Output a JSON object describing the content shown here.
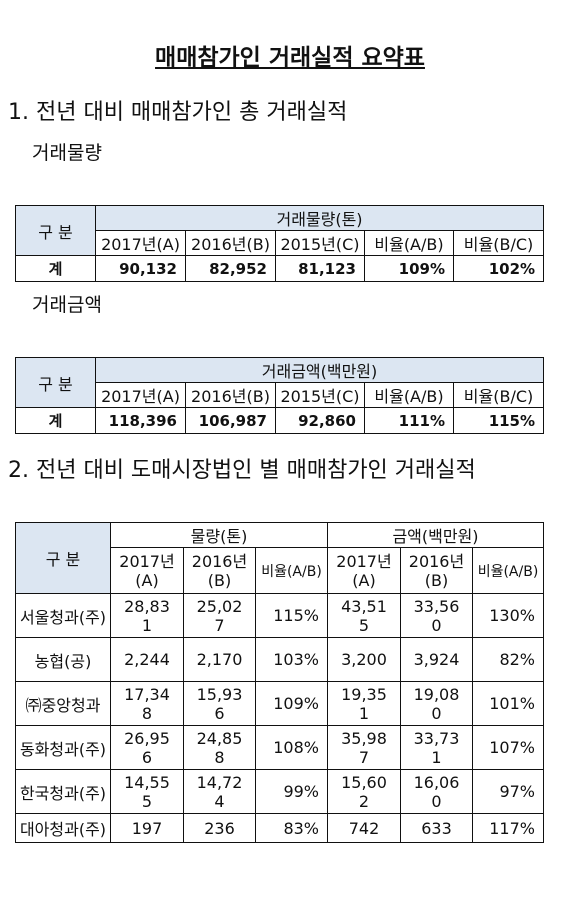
{
  "title": "매매참가인 거래실적 요약표",
  "section1": {
    "heading": "1. 전년 대비 매매참가인 총 거래실적",
    "volume": {
      "label": "거래물량",
      "table": {
        "corner": "구 분",
        "group": "거래물량(톤)",
        "columns": [
          "2017년(A)",
          "2016년(B)",
          "2015년(C)",
          "비율(A/B)",
          "비율(B/C)"
        ],
        "rows": [
          [
            "계",
            "90,132",
            "82,952",
            "81,123",
            "109%",
            "102%"
          ]
        ]
      }
    },
    "amount": {
      "label": "거래금액",
      "table": {
        "corner": "구 분",
        "group": "거래금액(백만원)",
        "columns": [
          "2017년(A)",
          "2016년(B)",
          "2015년(C)",
          "비율(A/B)",
          "비율(B/C)"
        ],
        "rows": [
          [
            "계",
            "118,396",
            "106,987",
            "92,860",
            "111%",
            "115%"
          ]
        ]
      }
    }
  },
  "section2": {
    "heading": "2. 전년 대비 도매시장법인 별 매매참가인 거래실적",
    "table": {
      "corner": "구 분",
      "groups": [
        "물량(톤)",
        "금액(백만원)"
      ],
      "columns": [
        "2017년(A)",
        "2016년(B)",
        "비율(A/B)",
        "2017년(A)",
        "2016년(B)",
        "비율(A/B)"
      ],
      "rows": [
        [
          "서울청과(주)",
          "28,831",
          "25,027",
          "115%",
          "43,515",
          "33,560",
          "130%"
        ],
        [
          "농협(공)",
          "2,244",
          "2,170",
          "103%",
          "3,200",
          "3,924",
          "82%"
        ],
        [
          "㈜중앙청과",
          "17,348",
          "15,936",
          "109%",
          "19,351",
          "19,080",
          "101%"
        ],
        [
          "동화청과(주)",
          "26,956",
          "24,858",
          "108%",
          "35,987",
          "33,731",
          "107%"
        ],
        [
          "한국청과(주)",
          "14,555",
          "14,724",
          "99%",
          "15,602",
          "16,060",
          "97%"
        ],
        [
          "대아청과(주)",
          "197",
          "236",
          "83%",
          "742",
          "633",
          "117%"
        ]
      ]
    }
  }
}
